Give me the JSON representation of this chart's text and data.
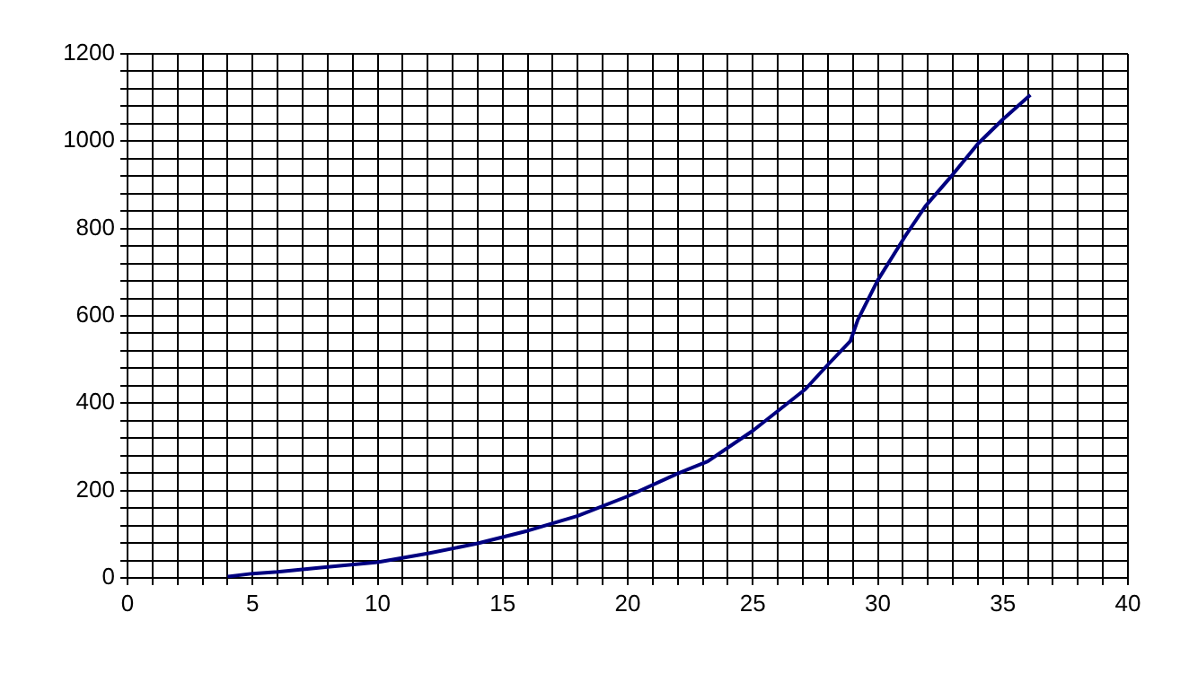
{
  "chart_data": {
    "type": "line",
    "x": [
      4,
      5,
      6,
      8,
      10,
      12,
      14,
      16,
      18,
      20,
      22,
      23.2,
      25,
      27.1,
      28,
      28.9,
      29.2,
      30,
      31.1,
      31.9,
      33,
      34,
      35,
      36.1
    ],
    "series": [
      {
        "color": "#000080",
        "values": [
          3,
          10,
          14,
          25,
          36,
          56,
          79,
          108,
          142,
          187,
          239,
          267,
          337,
          432,
          488,
          542,
          591,
          682,
          783,
          851,
          924,
          994,
          1050,
          1106
        ]
      }
    ],
    "xlim": [
      0,
      40
    ],
    "xticks": [
      0,
      {
        "value": 1,
        "label": null
      },
      {
        "value": 2,
        "label": null
      },
      {
        "value": 3,
        "label": null
      },
      {
        "value": 4,
        "label": null
      },
      5,
      {
        "value": 6,
        "label": null
      },
      {
        "value": 7,
        "label": null
      },
      {
        "value": 8,
        "label": null
      },
      {
        "value": 9,
        "label": null
      },
      10,
      {
        "value": 11,
        "label": null
      },
      {
        "value": 12,
        "label": null
      },
      {
        "value": 13,
        "label": null
      },
      {
        "value": 14,
        "label": null
      },
      15,
      {
        "value": 16,
        "label": null
      },
      {
        "value": 17,
        "label": null
      },
      {
        "value": 18,
        "label": null
      },
      {
        "value": 19,
        "label": null
      },
      20,
      {
        "value": 21,
        "label": null
      },
      {
        "value": 22,
        "label": null
      },
      {
        "value": 23,
        "label": null
      },
      {
        "value": 24,
        "label": null
      },
      25,
      {
        "value": 26,
        "label": null
      },
      {
        "value": 27,
        "label": null
      },
      {
        "value": 28,
        "label": null
      },
      {
        "value": 29,
        "label": null
      },
      30,
      {
        "value": 31,
        "label": null
      },
      {
        "value": 32,
        "label": null
      },
      {
        "value": 33,
        "label": null
      },
      {
        "value": 34,
        "label": null
      },
      35,
      {
        "value": 36,
        "label": null
      },
      {
        "value": 37,
        "label": null
      },
      {
        "value": 38,
        "label": null
      },
      {
        "value": 39,
        "label": null
      },
      40
    ],
    "ylim": [
      0,
      1200
    ],
    "yticks": [
      0,
      {
        "value": 40,
        "label": null
      },
      {
        "value": 80,
        "label": null
      },
      {
        "value": 120,
        "label": null
      },
      {
        "value": 160,
        "label": null
      },
      200,
      {
        "value": 240,
        "label": null
      },
      {
        "value": 280,
        "label": null
      },
      {
        "value": 320,
        "label": null
      },
      {
        "value": 360,
        "label": null
      },
      400,
      {
        "value": 440,
        "label": null
      },
      {
        "value": 480,
        "label": null
      },
      {
        "value": 520,
        "label": null
      },
      {
        "value": 560,
        "label": null
      },
      600,
      {
        "value": 640,
        "label": null
      },
      {
        "value": 680,
        "label": null
      },
      {
        "value": 720,
        "label": null
      },
      {
        "value": 760,
        "label": null
      },
      800,
      {
        "value": 840,
        "label": null
      },
      {
        "value": 880,
        "label": null
      },
      {
        "value": 920,
        "label": null
      },
      {
        "value": 960,
        "label": null
      },
      1000,
      {
        "value": 1040,
        "label": null
      },
      {
        "value": 1080,
        "label": null
      },
      {
        "value": 1120,
        "label": null
      },
      {
        "value": 1160,
        "label": null
      },
      1200
    ],
    "grid": true,
    "marker": "none",
    "line_style": "solid",
    "legend": false
  }
}
